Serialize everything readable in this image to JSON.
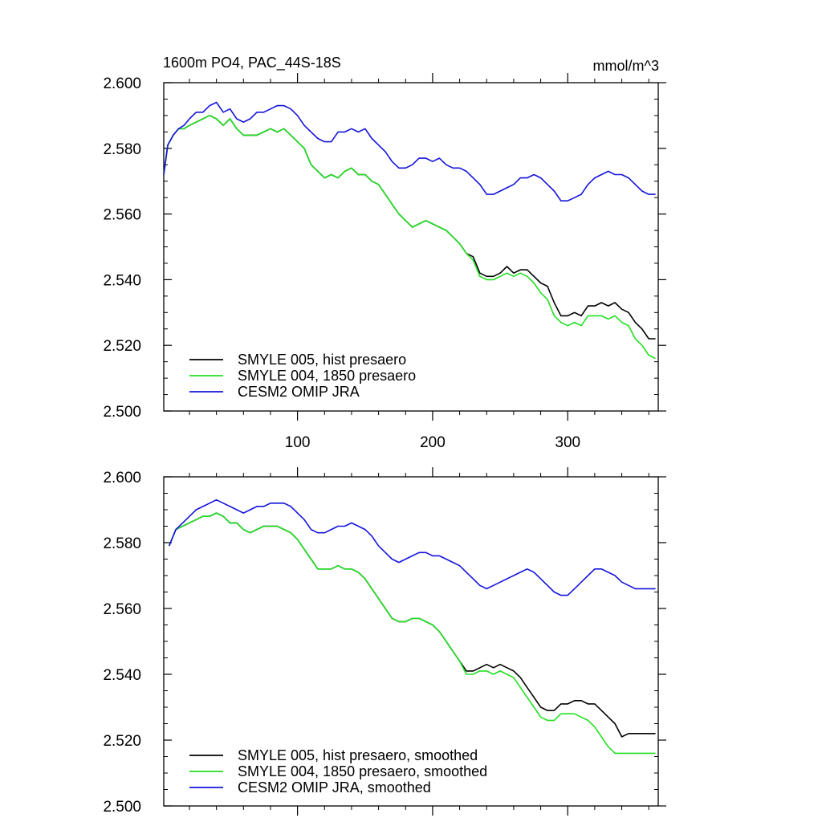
{
  "chart_data": [
    {
      "type": "line",
      "title": "1600m PO4, PAC_44S-18S",
      "units": "mmol/m^3",
      "xlim": [
        1,
        367
      ],
      "ylim": [
        2.5,
        2.6
      ],
      "x_ticks": [
        100,
        200,
        300
      ],
      "x_tick_labels": [
        "100",
        "200",
        "300"
      ],
      "y_ticks": [
        2.5,
        2.52,
        2.54,
        2.56,
        2.58,
        2.6
      ],
      "y_tick_labels": [
        "2.500",
        "2.520",
        "2.540",
        "2.560",
        "2.580",
        "2.600"
      ],
      "legend_position": "bottom-left",
      "series": [
        {
          "name": "SMYLE 005, hist presaero",
          "color": "#000000",
          "x": [
            1,
            4,
            8,
            12,
            16,
            20,
            25,
            30,
            35,
            40,
            45,
            50,
            55,
            60,
            65,
            70,
            75,
            80,
            85,
            90,
            95,
            100,
            105,
            110,
            115,
            120,
            125,
            130,
            135,
            140,
            145,
            150,
            155,
            160,
            165,
            170,
            175,
            180,
            185,
            190,
            195,
            200,
            205,
            210,
            215,
            220,
            225,
            230,
            235,
            240,
            245,
            250,
            255,
            260,
            265,
            270,
            275,
            280,
            285,
            290,
            295,
            300,
            305,
            310,
            315,
            320,
            325,
            330,
            335,
            340,
            345,
            350,
            355,
            360,
            365
          ],
          "y": [
            2.572,
            2.581,
            2.584,
            2.586,
            2.586,
            2.587,
            2.588,
            2.589,
            2.59,
            2.589,
            2.587,
            2.589,
            2.586,
            2.584,
            2.584,
            2.584,
            2.585,
            2.586,
            2.585,
            2.586,
            2.584,
            2.582,
            2.58,
            2.575,
            2.573,
            2.571,
            2.572,
            2.571,
            2.573,
            2.574,
            2.572,
            2.572,
            2.57,
            2.569,
            2.566,
            2.563,
            2.56,
            2.558,
            2.556,
            2.557,
            2.558,
            2.557,
            2.556,
            2.555,
            2.553,
            2.551,
            2.548,
            2.547,
            2.542,
            2.541,
            2.541,
            2.542,
            2.544,
            2.542,
            2.543,
            2.543,
            2.541,
            2.539,
            2.538,
            2.533,
            2.529,
            2.529,
            2.53,
            2.529,
            2.532,
            2.532,
            2.533,
            2.532,
            2.533,
            2.531,
            2.53,
            2.527,
            2.525,
            2.522,
            2.522
          ]
        },
        {
          "name": "SMYLE 004, 1850 presaero",
          "color": "#22e022",
          "x": [
            1,
            4,
            8,
            12,
            16,
            20,
            25,
            30,
            35,
            40,
            45,
            50,
            55,
            60,
            65,
            70,
            75,
            80,
            85,
            90,
            95,
            100,
            105,
            110,
            115,
            120,
            125,
            130,
            135,
            140,
            145,
            150,
            155,
            160,
            165,
            170,
            175,
            180,
            185,
            190,
            195,
            200,
            205,
            210,
            215,
            220,
            225,
            230,
            235,
            240,
            245,
            250,
            255,
            260,
            265,
            270,
            275,
            280,
            285,
            290,
            295,
            300,
            305,
            310,
            315,
            320,
            325,
            330,
            335,
            340,
            345,
            350,
            355,
            360,
            365
          ],
          "y": [
            2.572,
            2.581,
            2.584,
            2.586,
            2.586,
            2.587,
            2.588,
            2.589,
            2.59,
            2.589,
            2.587,
            2.589,
            2.586,
            2.584,
            2.584,
            2.584,
            2.585,
            2.586,
            2.585,
            2.586,
            2.584,
            2.582,
            2.58,
            2.575,
            2.573,
            2.571,
            2.572,
            2.571,
            2.573,
            2.574,
            2.572,
            2.572,
            2.57,
            2.569,
            2.566,
            2.563,
            2.56,
            2.558,
            2.556,
            2.557,
            2.558,
            2.557,
            2.556,
            2.555,
            2.553,
            2.551,
            2.548,
            2.546,
            2.541,
            2.54,
            2.54,
            2.541,
            2.542,
            2.541,
            2.542,
            2.541,
            2.539,
            2.536,
            2.534,
            2.529,
            2.527,
            2.526,
            2.527,
            2.526,
            2.529,
            2.529,
            2.529,
            2.528,
            2.529,
            2.527,
            2.526,
            2.522,
            2.52,
            2.517,
            2.516
          ]
        },
        {
          "name": "CESM2 OMIP JRA",
          "color": "#1414dc",
          "x": [
            1,
            4,
            8,
            12,
            16,
            20,
            25,
            30,
            35,
            40,
            45,
            50,
            55,
            60,
            65,
            70,
            75,
            80,
            85,
            90,
            95,
            100,
            105,
            110,
            115,
            120,
            125,
            130,
            135,
            140,
            145,
            150,
            155,
            160,
            165,
            170,
            175,
            180,
            185,
            190,
            195,
            200,
            205,
            210,
            215,
            220,
            225,
            230,
            235,
            240,
            245,
            250,
            255,
            260,
            265,
            270,
            275,
            280,
            285,
            290,
            295,
            300,
            305,
            310,
            315,
            320,
            325,
            330,
            335,
            340,
            345,
            350,
            355,
            360,
            365
          ],
          "y": [
            2.572,
            2.581,
            2.584,
            2.586,
            2.587,
            2.589,
            2.591,
            2.591,
            2.593,
            2.594,
            2.591,
            2.592,
            2.589,
            2.588,
            2.589,
            2.591,
            2.591,
            2.592,
            2.593,
            2.593,
            2.592,
            2.59,
            2.587,
            2.585,
            2.583,
            2.582,
            2.582,
            2.585,
            2.585,
            2.586,
            2.585,
            2.586,
            2.583,
            2.581,
            2.579,
            2.576,
            2.574,
            2.574,
            2.575,
            2.577,
            2.577,
            2.576,
            2.577,
            2.575,
            2.574,
            2.574,
            2.573,
            2.571,
            2.569,
            2.566,
            2.566,
            2.567,
            2.568,
            2.569,
            2.571,
            2.571,
            2.572,
            2.571,
            2.569,
            2.567,
            2.564,
            2.564,
            2.565,
            2.566,
            2.569,
            2.571,
            2.572,
            2.573,
            2.572,
            2.572,
            2.571,
            2.569,
            2.567,
            2.566,
            2.566
          ]
        }
      ]
    },
    {
      "type": "line",
      "xlim": [
        1,
        367
      ],
      "ylim": [
        2.5,
        2.6
      ],
      "x_ticks": [
        100,
        200,
        300
      ],
      "y_ticks": [
        2.5,
        2.52,
        2.54,
        2.56,
        2.58,
        2.6
      ],
      "y_tick_labels": [
        "2.500",
        "2.520",
        "2.540",
        "2.560",
        "2.580",
        "2.600"
      ],
      "legend_position": "bottom-left",
      "series": [
        {
          "name": "SMYLE 005, hist presaero, smoothed",
          "color": "#000000",
          "x": [
            5,
            10,
            15,
            20,
            25,
            30,
            35,
            40,
            45,
            50,
            55,
            60,
            65,
            70,
            75,
            80,
            85,
            90,
            95,
            100,
            105,
            110,
            115,
            120,
            125,
            130,
            135,
            140,
            145,
            150,
            155,
            160,
            165,
            170,
            175,
            180,
            185,
            190,
            195,
            200,
            205,
            210,
            215,
            220,
            225,
            230,
            235,
            240,
            245,
            250,
            255,
            260,
            265,
            270,
            275,
            280,
            285,
            290,
            295,
            300,
            305,
            310,
            315,
            320,
            325,
            330,
            335,
            340,
            345,
            350,
            355,
            360,
            365
          ],
          "y": [
            2.579,
            2.584,
            2.585,
            2.586,
            2.587,
            2.588,
            2.588,
            2.589,
            2.588,
            2.586,
            2.586,
            2.584,
            2.583,
            2.584,
            2.585,
            2.585,
            2.585,
            2.584,
            2.583,
            2.581,
            2.578,
            2.575,
            2.572,
            2.572,
            2.572,
            2.573,
            2.572,
            2.572,
            2.571,
            2.569,
            2.566,
            2.563,
            2.56,
            2.557,
            2.556,
            2.556,
            2.557,
            2.557,
            2.556,
            2.555,
            2.553,
            2.55,
            2.547,
            2.544,
            2.541,
            2.541,
            2.542,
            2.543,
            2.542,
            2.543,
            2.542,
            2.541,
            2.539,
            2.536,
            2.533,
            2.53,
            2.529,
            2.529,
            2.531,
            2.531,
            2.532,
            2.532,
            2.531,
            2.531,
            2.529,
            2.527,
            2.525,
            2.521,
            2.522,
            2.522,
            2.522,
            2.522,
            2.522
          ]
        },
        {
          "name": "SMYLE 004, 1850 presaero, smoothed",
          "color": "#22e022",
          "x": [
            5,
            10,
            15,
            20,
            25,
            30,
            35,
            40,
            45,
            50,
            55,
            60,
            65,
            70,
            75,
            80,
            85,
            90,
            95,
            100,
            105,
            110,
            115,
            120,
            125,
            130,
            135,
            140,
            145,
            150,
            155,
            160,
            165,
            170,
            175,
            180,
            185,
            190,
            195,
            200,
            205,
            210,
            215,
            220,
            225,
            230,
            235,
            240,
            245,
            250,
            255,
            260,
            265,
            270,
            275,
            280,
            285,
            290,
            295,
            300,
            305,
            310,
            315,
            320,
            325,
            330,
            335,
            340,
            345,
            350,
            355,
            360,
            365
          ],
          "y": [
            2.579,
            2.584,
            2.585,
            2.586,
            2.587,
            2.588,
            2.588,
            2.589,
            2.588,
            2.586,
            2.586,
            2.584,
            2.583,
            2.584,
            2.585,
            2.585,
            2.585,
            2.584,
            2.583,
            2.581,
            2.578,
            2.575,
            2.572,
            2.572,
            2.572,
            2.573,
            2.572,
            2.572,
            2.571,
            2.569,
            2.566,
            2.563,
            2.56,
            2.557,
            2.556,
            2.556,
            2.557,
            2.557,
            2.556,
            2.555,
            2.553,
            2.55,
            2.547,
            2.544,
            2.54,
            2.54,
            2.541,
            2.541,
            2.54,
            2.541,
            2.54,
            2.539,
            2.536,
            2.533,
            2.53,
            2.527,
            2.526,
            2.526,
            2.528,
            2.528,
            2.528,
            2.527,
            2.526,
            2.524,
            2.521,
            2.518,
            2.516,
            2.516,
            2.516,
            2.516,
            2.516,
            2.516,
            2.516
          ]
        },
        {
          "name": "CESM2 OMIP JRA, smoothed",
          "color": "#1414dc",
          "x": [
            5,
            10,
            15,
            20,
            25,
            30,
            35,
            40,
            45,
            50,
            55,
            60,
            65,
            70,
            75,
            80,
            85,
            90,
            95,
            100,
            105,
            110,
            115,
            120,
            125,
            130,
            135,
            140,
            145,
            150,
            155,
            160,
            165,
            170,
            175,
            180,
            185,
            190,
            195,
            200,
            205,
            210,
            215,
            220,
            225,
            230,
            235,
            240,
            245,
            250,
            255,
            260,
            265,
            270,
            275,
            280,
            285,
            290,
            295,
            300,
            305,
            310,
            315,
            320,
            325,
            330,
            335,
            340,
            345,
            350,
            355,
            360,
            365
          ],
          "y": [
            2.579,
            2.584,
            2.586,
            2.588,
            2.59,
            2.591,
            2.592,
            2.593,
            2.592,
            2.591,
            2.59,
            2.589,
            2.59,
            2.591,
            2.591,
            2.592,
            2.592,
            2.592,
            2.591,
            2.589,
            2.587,
            2.584,
            2.583,
            2.583,
            2.584,
            2.585,
            2.585,
            2.586,
            2.585,
            2.584,
            2.582,
            2.579,
            2.577,
            2.575,
            2.574,
            2.575,
            2.576,
            2.577,
            2.577,
            2.576,
            2.576,
            2.575,
            2.574,
            2.573,
            2.571,
            2.569,
            2.567,
            2.566,
            2.567,
            2.568,
            2.569,
            2.57,
            2.571,
            2.572,
            2.571,
            2.569,
            2.567,
            2.565,
            2.564,
            2.564,
            2.566,
            2.568,
            2.57,
            2.572,
            2.572,
            2.571,
            2.57,
            2.568,
            2.567,
            2.566,
            2.566,
            2.566,
            2.566
          ]
        }
      ]
    }
  ]
}
